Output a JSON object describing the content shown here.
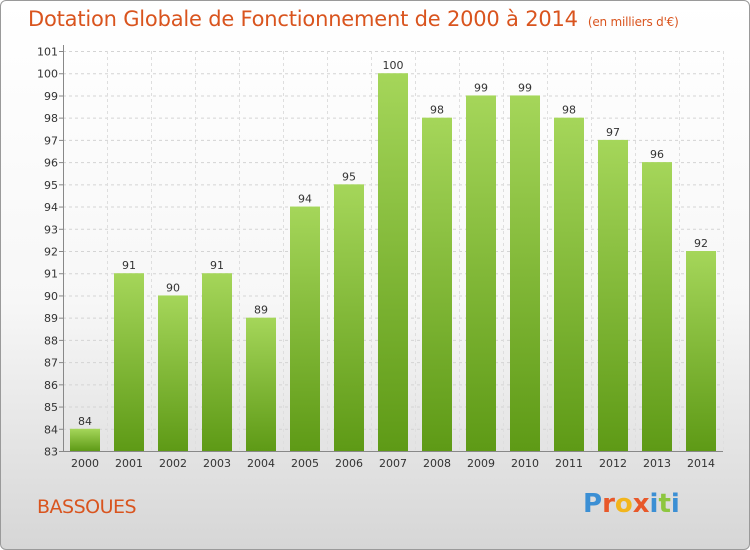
{
  "header": {
    "title": "Dotation Globale de Fonctionnement de 2000 à 2014",
    "subtitle": "(en milliers d'€)"
  },
  "footer": {
    "commune": "BASSOUES",
    "logo": "Proxiti"
  },
  "colors": {
    "accent": "#d9541e",
    "bar_light": "#a5d65a",
    "bar_dark": "#5e9a16",
    "logo_letters": [
      "#3b8fd4",
      "#e8582a",
      "#f2b51c",
      "#e8582a",
      "#3b8fd4",
      "#8dc63f",
      "#3b8fd4"
    ]
  },
  "chart_data": {
    "type": "bar",
    "categories": [
      "2000",
      "2001",
      "2002",
      "2003",
      "2004",
      "2005",
      "2006",
      "2007",
      "2008",
      "2009",
      "2010",
      "2011",
      "2012",
      "2013",
      "2014"
    ],
    "values": [
      84,
      91,
      90,
      91,
      89,
      94,
      95,
      100,
      98,
      99,
      99,
      98,
      97,
      96,
      92
    ],
    "data_labels": [
      "84",
      "91",
      "90",
      "91",
      "89",
      "94",
      "95",
      "100",
      "98",
      "99",
      "99",
      "98",
      "97",
      "96",
      "92"
    ],
    "ylim": [
      83,
      101
    ],
    "yticks": [
      "83",
      "84",
      "85",
      "86",
      "87",
      "88",
      "89",
      "90",
      "91",
      "92",
      "93",
      "94",
      "95",
      "96",
      "97",
      "98",
      "99",
      "100",
      "101"
    ],
    "grid": true,
    "xlabel": "",
    "ylabel": ""
  }
}
